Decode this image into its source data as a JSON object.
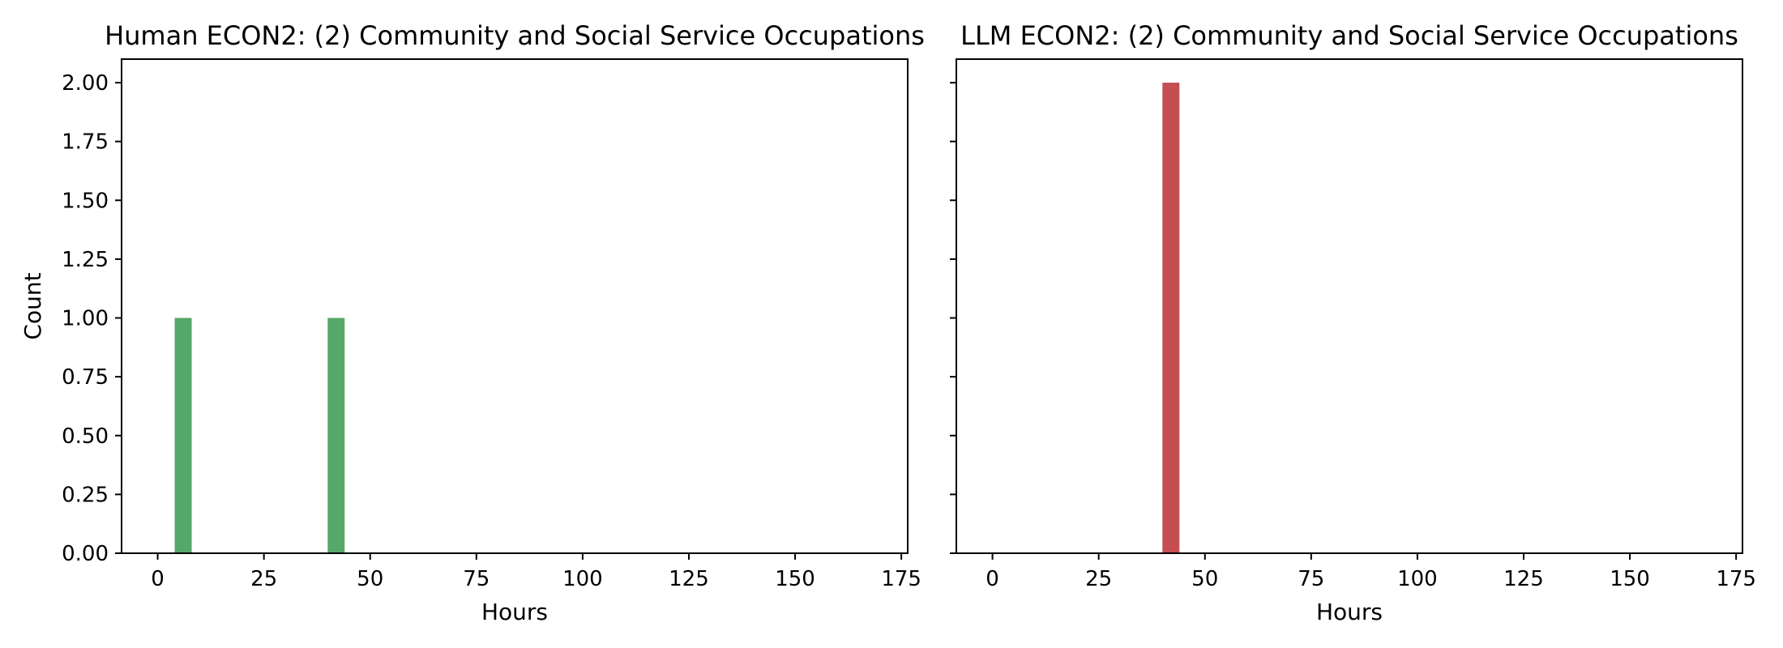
{
  "chart_data": [
    {
      "type": "bar",
      "title": "Human ECON2: (2) Community and Social Service Occupations",
      "xlabel": "Hours",
      "ylabel": "Count",
      "xlim": [
        -8.5,
        176.5
      ],
      "ylim": [
        0,
        2.1
      ],
      "x_ticks": [
        0,
        25,
        50,
        75,
        100,
        125,
        150,
        175
      ],
      "y_ticks": [
        "0.00",
        "0.25",
        "0.50",
        "0.75",
        "1.00",
        "1.25",
        "1.50",
        "1.75",
        "2.00"
      ],
      "bin_width": 4,
      "bars": [
        {
          "x_start": 4,
          "x_end": 8,
          "value": 1
        },
        {
          "x_start": 40,
          "x_end": 44,
          "value": 1
        }
      ],
      "color": "#55a868"
    },
    {
      "type": "bar",
      "title": "LLM ECON2: (2) Community and Social Service Occupations",
      "xlabel": "Hours",
      "ylabel": "",
      "xlim": [
        -8.5,
        176.5
      ],
      "ylim": [
        0,
        2.1
      ],
      "x_ticks": [
        0,
        25,
        50,
        75,
        100,
        125,
        150,
        175
      ],
      "y_ticks": [],
      "bin_width": 4,
      "bars": [
        {
          "x_start": 40,
          "x_end": 44,
          "value": 2
        }
      ],
      "color": "#c44e52"
    }
  ]
}
